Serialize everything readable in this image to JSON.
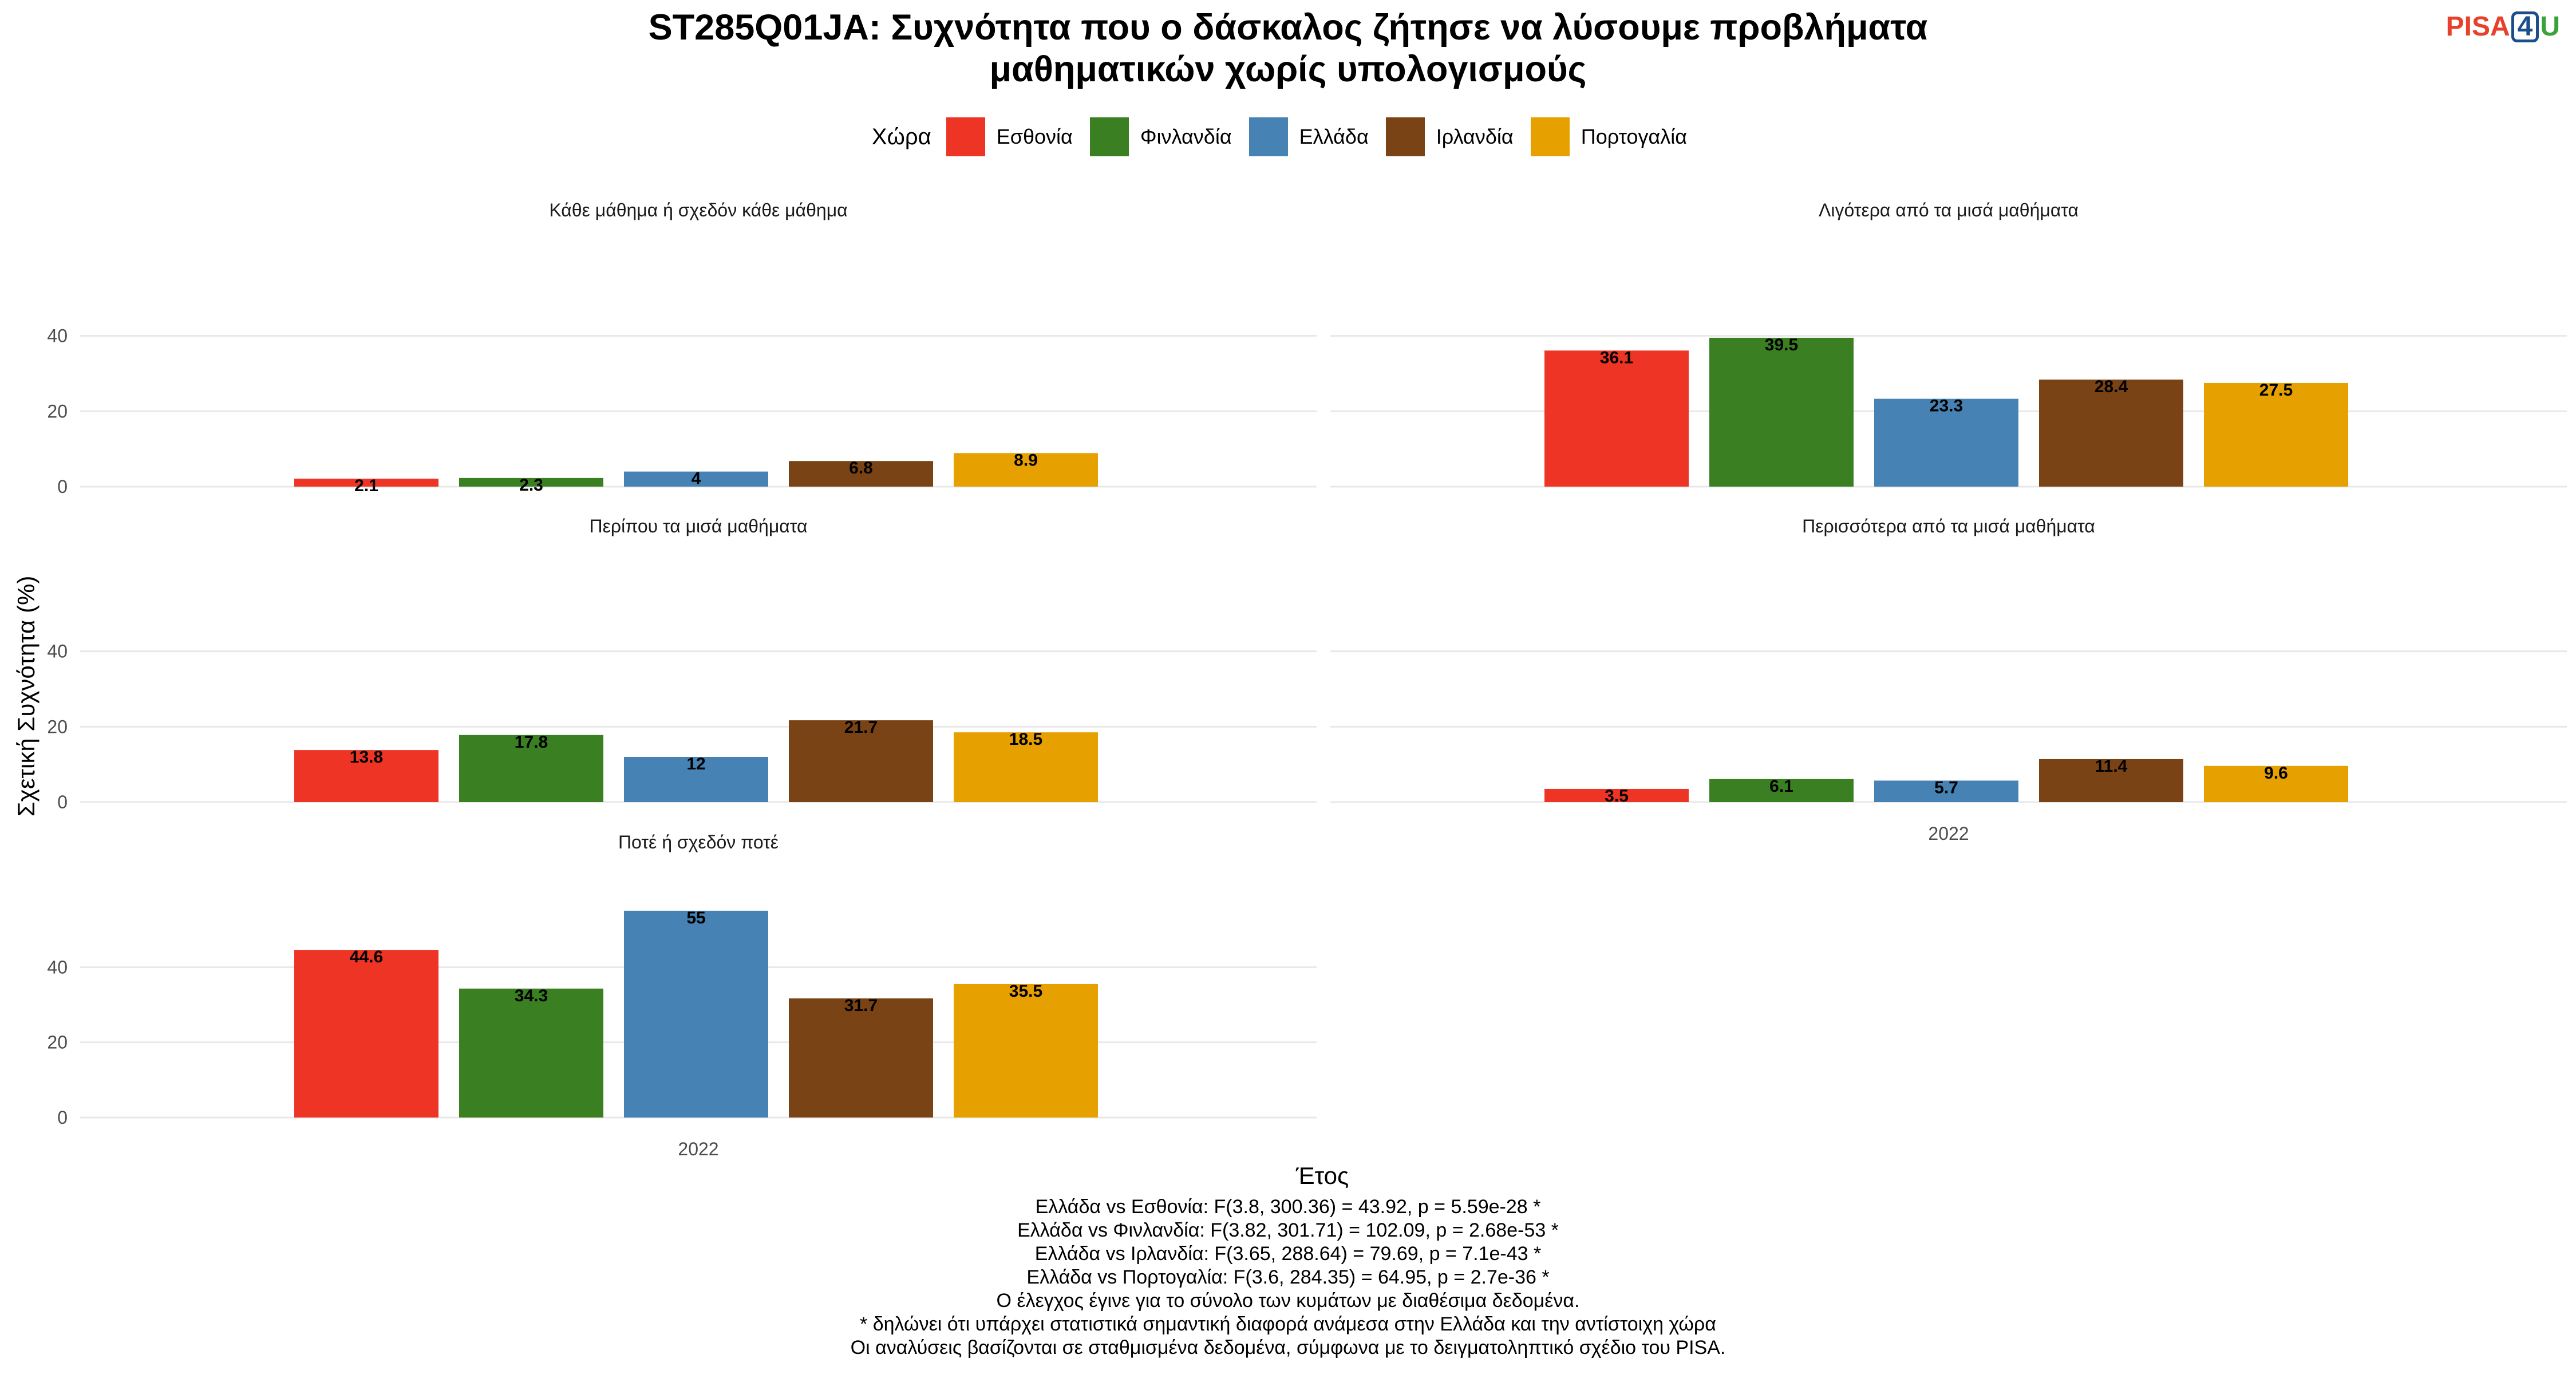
{
  "title_line1": "ST285Q01JA: Συχνότητα που ο δάσκαλος ζήτησε να λύσουμε προβλήματα",
  "title_line2": "μαθηματικών χωρίς υπολογισμούς",
  "logo": {
    "p": "PISA",
    "four": "4",
    "u": "U"
  },
  "legend_title": "Χώρα",
  "colors": {
    "Εσθονία": "#ee3424",
    "Φινλανδία": "#3a8022",
    "Ελλάδα": "#4682b4",
    "Ιρλανδία": "#7a4315",
    "Πορτογαλία": "#e6a000"
  },
  "chart_data": {
    "type": "bar",
    "xlabel": "Έτος",
    "ylabel": "Σχετική Συχνότητα (%)",
    "x_category": "2022",
    "series_names": [
      "Εσθονία",
      "Φινλανδία",
      "Ελλάδα",
      "Ιρλανδία",
      "Πορτογαλία"
    ],
    "panels": [
      {
        "title": "Κάθε μάθημα ή σχεδόν κάθε μάθημα",
        "values": [
          2.1,
          2.3,
          4,
          6.8,
          8.9
        ]
      },
      {
        "title": "Λιγότερα από τα μισά μαθήματα",
        "values": [
          36.1,
          39.5,
          23.3,
          28.4,
          27.5
        ]
      },
      {
        "title": "Περίπου τα μισά μαθήματα",
        "values": [
          13.8,
          17.8,
          12,
          21.7,
          18.5
        ]
      },
      {
        "title": "Περισσότερα από τα μισά μαθήματα",
        "values": [
          3.5,
          6.1,
          5.7,
          11.4,
          9.6
        ]
      },
      {
        "title": "Ποτέ ή σχεδόν ποτέ",
        "values": [
          44.6,
          34.3,
          55,
          31.7,
          35.5
        ]
      }
    ],
    "yticks": [
      0,
      20,
      40
    ],
    "grid": true,
    "legend_position": "top"
  },
  "caption": [
    "Ελλάδα vs Εσθονία: F(3.8, 300.36) = 43.92, p = 5.59e-28 *",
    "Ελλάδα vs Φινλανδία: F(3.82, 301.71) = 102.09, p = 2.68e-53 *",
    "Ελλάδα vs Ιρλανδία: F(3.65, 288.64) = 79.69, p = 7.1e-43 *",
    "Ελλάδα vs Πορτογαλία: F(3.6, 284.35) = 64.95, p = 2.7e-36 *",
    "Ο έλεγχος έγινε για το σύνολο των κυμάτων με διαθέσιμα δεδομένα.",
    "* δηλώνει ότι υπάρχει στατιστικά σημαντική διαφορά ανάμεσα στην Ελλάδα και την αντίστοιχη χώρα",
    "Οι αναλύσεις βασίζονται σε σταθμισμένα δεδομένα, σύμφωνα με το δειγματοληπτικό σχέδιο του PISA."
  ]
}
